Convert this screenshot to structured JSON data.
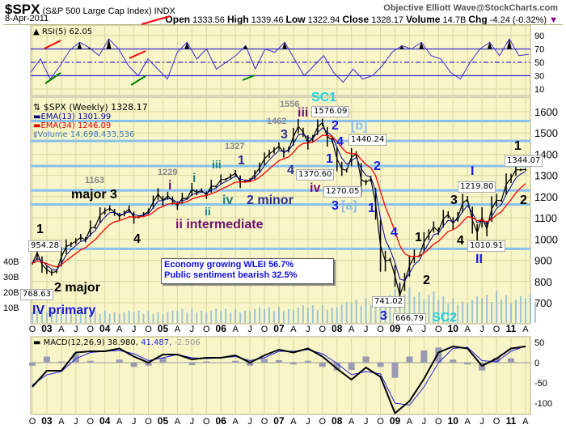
{
  "header": {
    "symbol": "$SPX",
    "name": "(S&P 500 Large Cap Index)",
    "exchange": "INDX",
    "brand": "Objective Elliott Wave@StockCharts.com",
    "date": "8-Apr-2011",
    "open_label": "Open",
    "open": "1333.56",
    "high_label": "High",
    "high": "1339.46",
    "low_label": "Low",
    "low": "1322.94",
    "close_label": "Close",
    "close": "1328.17",
    "volume_label": "Volume",
    "volume": "14.7B",
    "chg_label": "Chg",
    "chg": "-4.24 (-0.32%)",
    "chg_icon": "triangle-down-icon",
    "chg_color": "#800080"
  },
  "colors": {
    "panel_bg": "#f8f6c8",
    "grid": "#d8d6a0",
    "fib_line": "#88c0ec",
    "ema13": "#00008b",
    "ema34": "#ff0000",
    "volume": "#8ab8d8",
    "rsi": "#3c2ad0",
    "macd": "#000000",
    "signal": "#2020e0",
    "histogram": "#9a9ab0",
    "annot_blue": "#1818e0",
    "annot_navy": "#303090",
    "annot_purple": "#701070",
    "annot_teal": "#208080",
    "annot_cyan": "#20d0e0",
    "annot_lightblue": "#90c0e8"
  },
  "legends": {
    "rsi": "RSI(5) 62.05",
    "price": "$SPX (Weekly) 1328.17",
    "ema13": "EMA(13) 1301.99",
    "ema34": "EMA(34) 1246.09",
    "volume": "Volume 14,698,433,536",
    "macd": "MACD(12,26,9) 38.980,",
    "macd_signal": "41.487,",
    "macd_hist": "-2.506"
  },
  "note": {
    "line1": "Economy growing WLEI 56.7%",
    "line2": "Public sentiment bearish 32.5%"
  },
  "annotations": [
    {
      "text": "1"
    },
    {
      "text": "954.28"
    },
    {
      "text": "768.63"
    },
    {
      "text": "2 major"
    },
    {
      "text": "IV primary"
    },
    {
      "text": "major 3"
    },
    {
      "text": "1163"
    },
    {
      "text": "4"
    },
    {
      "text": "1229"
    },
    {
      "text": "i"
    },
    {
      "text": "i"
    },
    {
      "text": "iii"
    },
    {
      "text": "1327"
    },
    {
      "text": "1"
    },
    {
      "text": "ii"
    },
    {
      "text": "iv"
    },
    {
      "text": "ii intermediate"
    },
    {
      "text": "2 minor"
    },
    {
      "text": "1556"
    },
    {
      "text": "1462"
    },
    {
      "text": "3"
    },
    {
      "text": "4"
    },
    {
      "text": "iii"
    },
    {
      "text": "SC1"
    },
    {
      "text": "1576.09"
    },
    {
      "text": "2"
    },
    {
      "text": "[b]"
    },
    {
      "text": "iv"
    },
    {
      "text": "1370.60"
    },
    {
      "text": "1"
    },
    {
      "text": "4"
    },
    {
      "text": "1440.24"
    },
    {
      "text": "2"
    },
    {
      "text": "1270.05"
    },
    {
      "text": "3"
    },
    {
      "text": "[a]"
    },
    {
      "text": "1"
    },
    {
      "text": "4"
    },
    {
      "text": "741.02"
    },
    {
      "text": "3"
    },
    {
      "text": "666.79"
    },
    {
      "text": "SC2"
    },
    {
      "text": "1"
    },
    {
      "text": "2"
    },
    {
      "text": "3"
    },
    {
      "text": "I"
    },
    {
      "text": "1219.80"
    },
    {
      "text": "4"
    },
    {
      "text": "1010.91"
    },
    {
      "text": "II"
    },
    {
      "text": "1344.07"
    },
    {
      "text": "1"
    },
    {
      "text": "2"
    }
  ],
  "chart_data": [
    {
      "type": "line",
      "title": "RSI(5) 62.05",
      "ylim": [
        0,
        100
      ],
      "yticks": [
        90,
        70,
        50,
        30,
        10
      ],
      "reference_lines": [
        70,
        50,
        30
      ],
      "x_step": "2 months from Oct 2002",
      "values": [
        35,
        55,
        25,
        45,
        68,
        80,
        72,
        60,
        85,
        70,
        45,
        30,
        55,
        40,
        25,
        65,
        80,
        55,
        70,
        40,
        50,
        60,
        75,
        40,
        70,
        65,
        80,
        55,
        30,
        45,
        60,
        35,
        20,
        40,
        25,
        30,
        45,
        65,
        75,
        70,
        80,
        60,
        55,
        35,
        25,
        50,
        70,
        80,
        60,
        85,
        60,
        62
      ]
    },
    {
      "type": "line",
      "title": "$SPX (Weekly) 1328.17",
      "scale": "linear",
      "ylim": [
        600,
        1650
      ],
      "yticks": [
        1600,
        1500,
        1400,
        1300,
        1200,
        1100,
        1000,
        900,
        800,
        700
      ],
      "x_start": "Oct 2002",
      "x_step": "1 month",
      "values": [
        885,
        936,
        880,
        855,
        841,
        848,
        916,
        964,
        975,
        990,
        1008,
        996,
        1050,
        1058,
        1112,
        1131,
        1145,
        1126,
        1107,
        1121,
        1141,
        1101,
        1104,
        1115,
        1130,
        1174,
        1212,
        1181,
        1204,
        1181,
        1157,
        1192,
        1191,
        1234,
        1220,
        1229,
        1207,
        1249,
        1248,
        1280,
        1281,
        1295,
        1311,
        1270,
        1270,
        1277,
        1304,
        1336,
        1378,
        1401,
        1418,
        1438,
        1407,
        1421,
        1482,
        1531,
        1503,
        1455,
        1474,
        1527,
        1549,
        1481,
        1468,
        1378,
        1331,
        1323,
        1386,
        1400,
        1280,
        1267,
        1283,
        1166,
        969,
        896,
        903,
        826,
        735,
        798,
        873,
        919,
        919,
        987,
        1021,
        1057,
        1036,
        1096,
        1115,
        1074,
        1104,
        1169,
        1187,
        1089,
        1031,
        1102,
        1049,
        1141,
        1183,
        1181,
        1258,
        1286,
        1327,
        1326,
        1328
      ],
      "fib_levels": [
        1556,
        1462,
        1344,
        1229,
        1163,
        954
      ],
      "volume_axis": [
        "40B",
        "30B",
        "20B",
        "10B"
      ],
      "volume_billions_quarterly": [
        8,
        7,
        7,
        7,
        7,
        7,
        7,
        7,
        7,
        7,
        8,
        8,
        8,
        8,
        8,
        9,
        9,
        9,
        10,
        10,
        10,
        12,
        13,
        14,
        16,
        22,
        20,
        18,
        15,
        14,
        15,
        16,
        18,
        15,
        16
      ]
    },
    {
      "type": "line",
      "title": "MACD(12,26,9)",
      "ylim": [
        -130,
        60
      ],
      "yticks": [
        50,
        0,
        -50,
        -100
      ],
      "x_step": "3 months from Oct 2002",
      "macd": [
        -60,
        -20,
        -20,
        25,
        28,
        28,
        35,
        15,
        0,
        20,
        20,
        8,
        12,
        12,
        18,
        0,
        18,
        32,
        25,
        35,
        15,
        -15,
        -42,
        -12,
        -35,
        -125,
        -95,
        -40,
        25,
        40,
        35,
        -8,
        10,
        35,
        40
      ],
      "signal": [
        -55,
        -30,
        -22,
        10,
        25,
        28,
        30,
        22,
        5,
        12,
        20,
        12,
        10,
        12,
        15,
        5,
        12,
        28,
        28,
        32,
        22,
        -2,
        -30,
        -22,
        -28,
        -100,
        -105,
        -60,
        0,
        35,
        38,
        5,
        2,
        28,
        41
      ]
    },
    {
      "type": "axis",
      "x_tick_labels": [
        "O",
        "03",
        "A",
        "J",
        "O",
        "04",
        "A",
        "J",
        "O",
        "05",
        "A",
        "J",
        "O",
        "06",
        "A",
        "J",
        "O",
        "07",
        "A",
        "J",
        "O",
        "08",
        "A",
        "J",
        "O",
        "09",
        "A",
        "J",
        "O",
        "10",
        "A",
        "J",
        "O",
        "11",
        "A"
      ]
    }
  ]
}
